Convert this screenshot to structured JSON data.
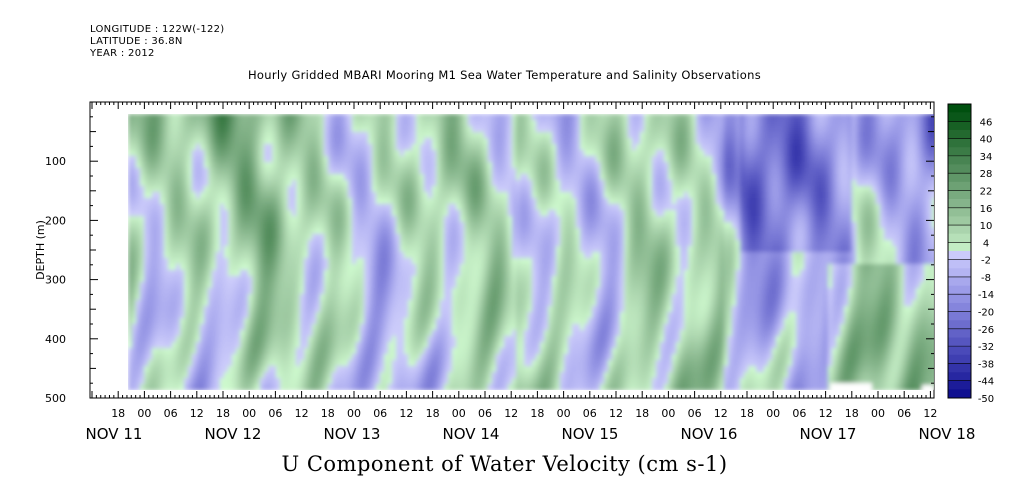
{
  "header": {
    "longitude": "LONGITUDE : 122W(-122)",
    "latitude": "LATITUDE : 36.8N",
    "year": "YEAR : 2012"
  },
  "chart_data": {
    "type": "heatmap",
    "title": "Hourly Gridded MBARI Mooring M1 Sea Water Temperature and Salinity Observations",
    "bottom_title": "U Component of Water Velocity (cm s-1)",
    "ylabel": "DEPTH (m)",
    "ylim": [
      500,
      0
    ],
    "y_ticks": [
      100,
      200,
      300,
      400,
      500
    ],
    "x_hour_ticks": [
      "18",
      "00",
      "06",
      "12",
      "18",
      "00",
      "06",
      "12",
      "18",
      "00",
      "06",
      "12",
      "18",
      "00",
      "06",
      "12",
      "18",
      "00",
      "06",
      "12",
      "18",
      "00",
      "06",
      "12",
      "18",
      "00",
      "06",
      "12",
      "18",
      "00",
      "06",
      "12"
    ],
    "x_day_labels": [
      "NOV 11",
      "NOV 12",
      "NOV 13",
      "NOV 14",
      "NOV 15",
      "NOV 16",
      "NOV 17",
      "NOV 18"
    ],
    "colorbar": {
      "labels": [
        "46",
        "40",
        "34",
        "28",
        "22",
        "16",
        "10",
        "4",
        "-2",
        "-8",
        "-14",
        "-20",
        "-26",
        "-32",
        "-38",
        "-44",
        "-50"
      ],
      "range": [
        -50,
        52
      ],
      "step": 3
    },
    "data_depth_range": [
      20,
      490
    ]
  }
}
